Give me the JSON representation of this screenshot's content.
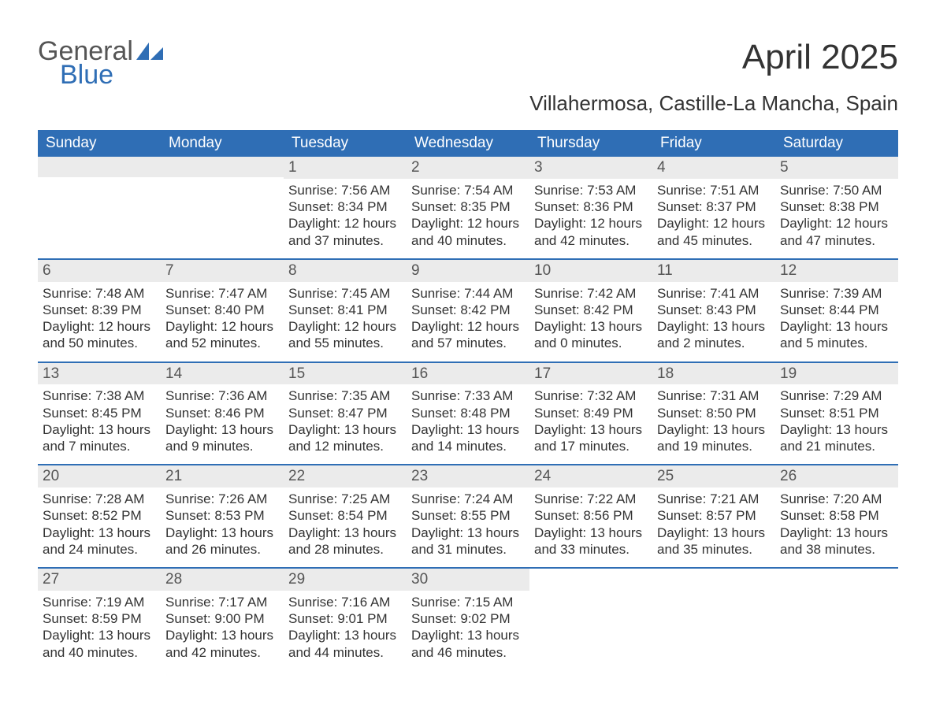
{
  "logo": {
    "top": "General",
    "bottom": "Blue"
  },
  "title": "April 2025",
  "subtitle": "Villahermosa, Castille-La Mancha, Spain",
  "colors": {
    "header_bg": "#2f6eb5",
    "header_text": "#ffffff",
    "daynum_bg": "#ebebeb",
    "daynum_text": "#555555",
    "body_text": "#333333",
    "week_divider": "#2f6eb5",
    "logo_top": "#555555",
    "logo_bottom": "#2f6eb5",
    "page_bg": "#ffffff"
  },
  "typography": {
    "title_fontsize": 44,
    "subtitle_fontsize": 26,
    "day_header_fontsize": 19,
    "daynum_fontsize": 19,
    "cell_fontsize": 17,
    "font_family": "Arial"
  },
  "day_headers": [
    "Sunday",
    "Monday",
    "Tuesday",
    "Wednesday",
    "Thursday",
    "Friday",
    "Saturday"
  ],
  "weeks": [
    [
      {
        "day": "",
        "sunrise": "",
        "sunset": "",
        "daylight": ""
      },
      {
        "day": "",
        "sunrise": "",
        "sunset": "",
        "daylight": ""
      },
      {
        "day": "1",
        "sunrise": "Sunrise: 7:56 AM",
        "sunset": "Sunset: 8:34 PM",
        "daylight": "Daylight: 12 hours and 37 minutes."
      },
      {
        "day": "2",
        "sunrise": "Sunrise: 7:54 AM",
        "sunset": "Sunset: 8:35 PM",
        "daylight": "Daylight: 12 hours and 40 minutes."
      },
      {
        "day": "3",
        "sunrise": "Sunrise: 7:53 AM",
        "sunset": "Sunset: 8:36 PM",
        "daylight": "Daylight: 12 hours and 42 minutes."
      },
      {
        "day": "4",
        "sunrise": "Sunrise: 7:51 AM",
        "sunset": "Sunset: 8:37 PM",
        "daylight": "Daylight: 12 hours and 45 minutes."
      },
      {
        "day": "5",
        "sunrise": "Sunrise: 7:50 AM",
        "sunset": "Sunset: 8:38 PM",
        "daylight": "Daylight: 12 hours and 47 minutes."
      }
    ],
    [
      {
        "day": "6",
        "sunrise": "Sunrise: 7:48 AM",
        "sunset": "Sunset: 8:39 PM",
        "daylight": "Daylight: 12 hours and 50 minutes."
      },
      {
        "day": "7",
        "sunrise": "Sunrise: 7:47 AM",
        "sunset": "Sunset: 8:40 PM",
        "daylight": "Daylight: 12 hours and 52 minutes."
      },
      {
        "day": "8",
        "sunrise": "Sunrise: 7:45 AM",
        "sunset": "Sunset: 8:41 PM",
        "daylight": "Daylight: 12 hours and 55 minutes."
      },
      {
        "day": "9",
        "sunrise": "Sunrise: 7:44 AM",
        "sunset": "Sunset: 8:42 PM",
        "daylight": "Daylight: 12 hours and 57 minutes."
      },
      {
        "day": "10",
        "sunrise": "Sunrise: 7:42 AM",
        "sunset": "Sunset: 8:42 PM",
        "daylight": "Daylight: 13 hours and 0 minutes."
      },
      {
        "day": "11",
        "sunrise": "Sunrise: 7:41 AM",
        "sunset": "Sunset: 8:43 PM",
        "daylight": "Daylight: 13 hours and 2 minutes."
      },
      {
        "day": "12",
        "sunrise": "Sunrise: 7:39 AM",
        "sunset": "Sunset: 8:44 PM",
        "daylight": "Daylight: 13 hours and 5 minutes."
      }
    ],
    [
      {
        "day": "13",
        "sunrise": "Sunrise: 7:38 AM",
        "sunset": "Sunset: 8:45 PM",
        "daylight": "Daylight: 13 hours and 7 minutes."
      },
      {
        "day": "14",
        "sunrise": "Sunrise: 7:36 AM",
        "sunset": "Sunset: 8:46 PM",
        "daylight": "Daylight: 13 hours and 9 minutes."
      },
      {
        "day": "15",
        "sunrise": "Sunrise: 7:35 AM",
        "sunset": "Sunset: 8:47 PM",
        "daylight": "Daylight: 13 hours and 12 minutes."
      },
      {
        "day": "16",
        "sunrise": "Sunrise: 7:33 AM",
        "sunset": "Sunset: 8:48 PM",
        "daylight": "Daylight: 13 hours and 14 minutes."
      },
      {
        "day": "17",
        "sunrise": "Sunrise: 7:32 AM",
        "sunset": "Sunset: 8:49 PM",
        "daylight": "Daylight: 13 hours and 17 minutes."
      },
      {
        "day": "18",
        "sunrise": "Sunrise: 7:31 AM",
        "sunset": "Sunset: 8:50 PM",
        "daylight": "Daylight: 13 hours and 19 minutes."
      },
      {
        "day": "19",
        "sunrise": "Sunrise: 7:29 AM",
        "sunset": "Sunset: 8:51 PM",
        "daylight": "Daylight: 13 hours and 21 minutes."
      }
    ],
    [
      {
        "day": "20",
        "sunrise": "Sunrise: 7:28 AM",
        "sunset": "Sunset: 8:52 PM",
        "daylight": "Daylight: 13 hours and 24 minutes."
      },
      {
        "day": "21",
        "sunrise": "Sunrise: 7:26 AM",
        "sunset": "Sunset: 8:53 PM",
        "daylight": "Daylight: 13 hours and 26 minutes."
      },
      {
        "day": "22",
        "sunrise": "Sunrise: 7:25 AM",
        "sunset": "Sunset: 8:54 PM",
        "daylight": "Daylight: 13 hours and 28 minutes."
      },
      {
        "day": "23",
        "sunrise": "Sunrise: 7:24 AM",
        "sunset": "Sunset: 8:55 PM",
        "daylight": "Daylight: 13 hours and 31 minutes."
      },
      {
        "day": "24",
        "sunrise": "Sunrise: 7:22 AM",
        "sunset": "Sunset: 8:56 PM",
        "daylight": "Daylight: 13 hours and 33 minutes."
      },
      {
        "day": "25",
        "sunrise": "Sunrise: 7:21 AM",
        "sunset": "Sunset: 8:57 PM",
        "daylight": "Daylight: 13 hours and 35 minutes."
      },
      {
        "day": "26",
        "sunrise": "Sunrise: 7:20 AM",
        "sunset": "Sunset: 8:58 PM",
        "daylight": "Daylight: 13 hours and 38 minutes."
      }
    ],
    [
      {
        "day": "27",
        "sunrise": "Sunrise: 7:19 AM",
        "sunset": "Sunset: 8:59 PM",
        "daylight": "Daylight: 13 hours and 40 minutes."
      },
      {
        "day": "28",
        "sunrise": "Sunrise: 7:17 AM",
        "sunset": "Sunset: 9:00 PM",
        "daylight": "Daylight: 13 hours and 42 minutes."
      },
      {
        "day": "29",
        "sunrise": "Sunrise: 7:16 AM",
        "sunset": "Sunset: 9:01 PM",
        "daylight": "Daylight: 13 hours and 44 minutes."
      },
      {
        "day": "30",
        "sunrise": "Sunrise: 7:15 AM",
        "sunset": "Sunset: 9:02 PM",
        "daylight": "Daylight: 13 hours and 46 minutes."
      },
      {
        "day": "",
        "sunrise": "",
        "sunset": "",
        "daylight": ""
      },
      {
        "day": "",
        "sunrise": "",
        "sunset": "",
        "daylight": ""
      },
      {
        "day": "",
        "sunrise": "",
        "sunset": "",
        "daylight": ""
      }
    ]
  ]
}
